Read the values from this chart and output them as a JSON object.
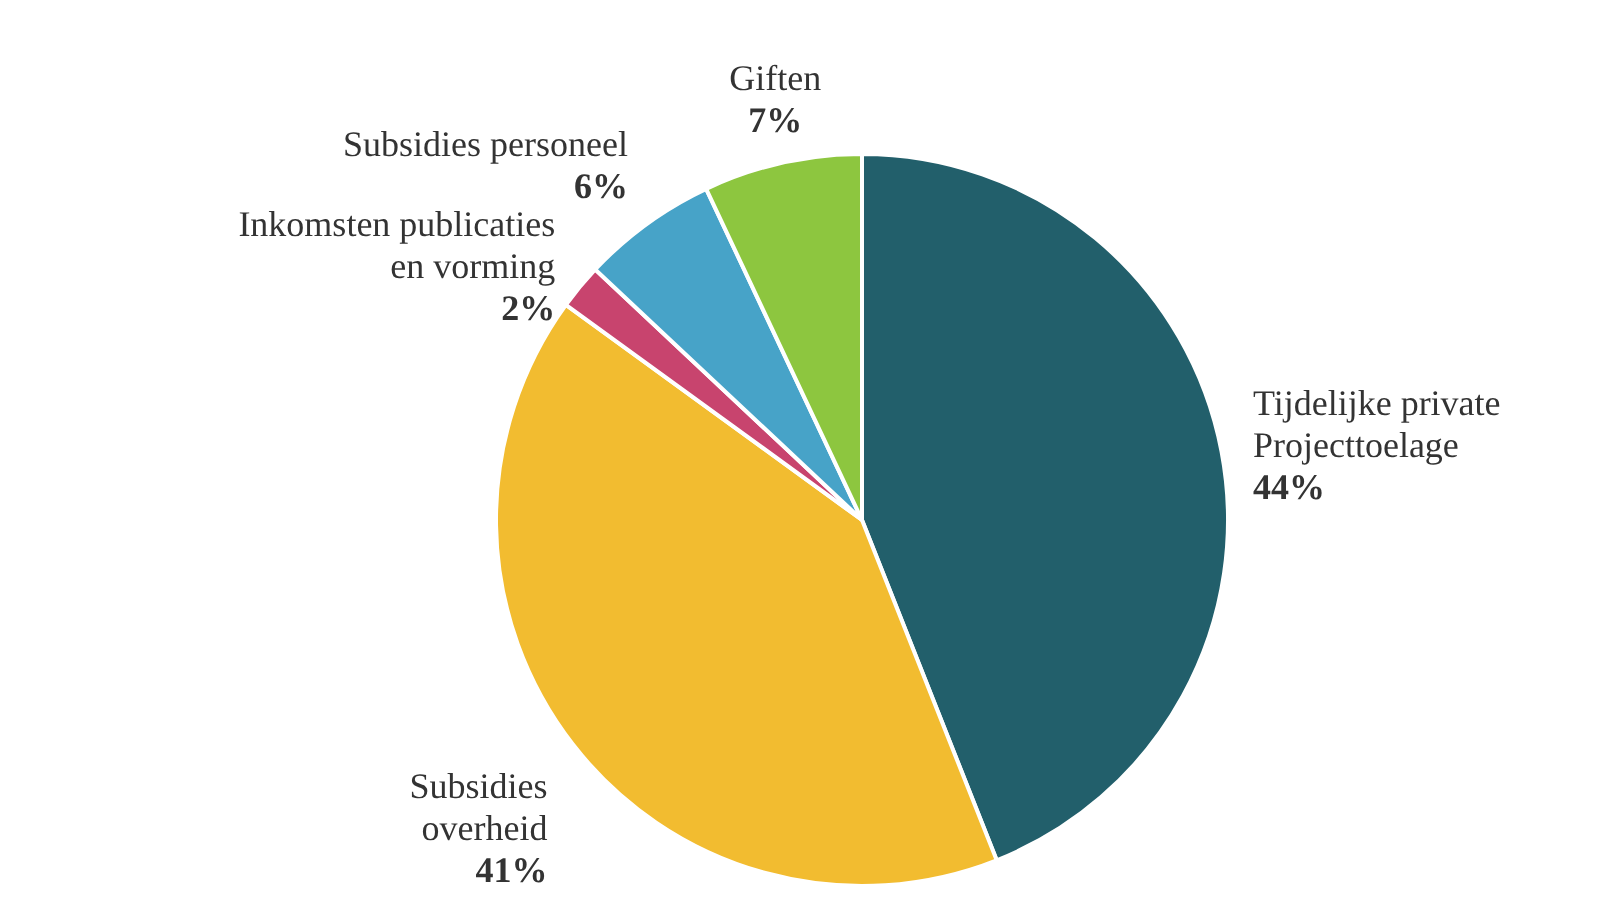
{
  "chart_data": {
    "type": "pie",
    "categories": [
      "Tijdelijke private\nProjecttoelage",
      "Subsidies\noverheid",
      "Inkomsten publicaties\nen vorming",
      "Subsidies personeel",
      "Giften"
    ],
    "values": [
      44,
      41,
      2,
      6,
      7
    ],
    "value_labels": [
      "44%",
      "41%",
      "2%",
      "6%",
      "7%"
    ],
    "colors": [
      "#225f6b",
      "#f2bc30",
      "#c8446e",
      "#47a3c8",
      "#8dc63f"
    ]
  }
}
